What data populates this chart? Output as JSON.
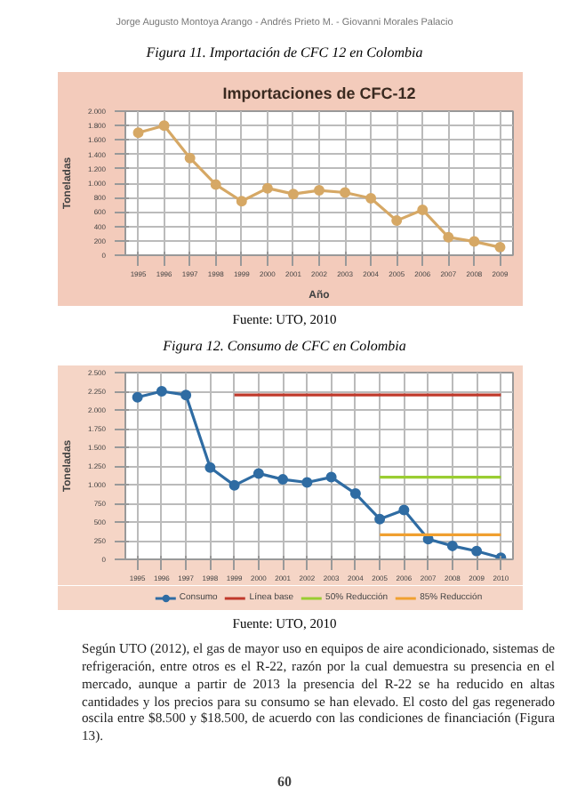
{
  "chart_data": [
    {
      "type": "other",
      "annotations": [
        "Jorge Augusto Montoya Arango - Andrés Prieto M. - Giovanni Morales Palacio"
      ]
    },
    {
      "type": "line",
      "title": "Figura 11. Importación de CFC 12 en Colombia",
      "subtitle": "Importaciones de CFC-12",
      "xlabel": "Año",
      "ylabel": "Toneladas",
      "x": [
        1995,
        1996,
        1997,
        1998,
        1999,
        2000,
        2001,
        2002,
        2003,
        2004,
        2005,
        2006,
        2007,
        2008,
        2009
      ],
      "series": [
        {
          "color": "#d6a865",
          "values": [
            1700,
            1800,
            1350,
            980,
            750,
            930,
            850,
            900,
            870,
            790,
            480,
            630,
            250,
            190,
            110
          ]
        }
      ],
      "xlim": [
        1994.5,
        2009.5
      ],
      "xticks": [
        1995,
        1996,
        1997,
        1998,
        1999,
        2000,
        2001,
        2002,
        2003,
        2004,
        2005,
        2006,
        2007,
        2008,
        2009
      ],
      "ylim": [
        0,
        2000
      ],
      "yticks": [
        0,
        200,
        400,
        600,
        800,
        {
          "value": 1000,
          "label": "1.000"
        },
        {
          "value": 1200,
          "label": "1.200"
        },
        {
          "value": 1400,
          "label": "1.400"
        },
        {
          "value": 1600,
          "label": "1.600"
        },
        {
          "value": 1800,
          "label": "1.800"
        },
        {
          "value": 2000,
          "label": "2.000"
        }
      ],
      "grid": true,
      "marker": "circle",
      "legend": false,
      "annotations": [
        "Fuente: UTO, 2010"
      ]
    },
    {
      "type": "line",
      "title": "Figura 12. Consumo de CFC en Colombia",
      "ylabel": "Toneladas",
      "series": [
        {
          "name": "Consumo",
          "color": "#2f6ca3",
          "marker": "circle",
          "x": [
            1995,
            1996,
            1997,
            1998,
            1999,
            2000,
            2001,
            2002,
            2003,
            2004,
            2005,
            2006,
            2007,
            2008,
            2009,
            2010
          ],
          "values": [
            2170,
            2250,
            2200,
            1230,
            990,
            1150,
            1070,
            1030,
            1100,
            880,
            540,
            660,
            270,
            180,
            110,
            20
          ]
        },
        {
          "name": "Línea base",
          "color": "#c0392b",
          "marker": "none",
          "x": [
            1999,
            2010
          ],
          "values": [
            2200,
            2200
          ]
        },
        {
          "name": "50% Reducción",
          "color": "#9acd32",
          "marker": "none",
          "x": [
            2005,
            2010
          ],
          "values": [
            1100,
            1100
          ]
        },
        {
          "name": "85% Reducción",
          "color": "#f0a030",
          "marker": "none",
          "x": [
            2005,
            2010
          ],
          "values": [
            330,
            330
          ]
        }
      ],
      "xlim": [
        1994.5,
        2010.5
      ],
      "xticks": [
        1995,
        1996,
        1997,
        1998,
        1999,
        2000,
        2001,
        2002,
        2003,
        2004,
        2005,
        2006,
        2007,
        2008,
        2009,
        2010
      ],
      "ylim": [
        0,
        2500
      ],
      "yticks": [
        0,
        250,
        500,
        750,
        {
          "value": 1000,
          "label": "1.000"
        },
        {
          "value": 1250,
          "label": "1.250"
        },
        {
          "value": 1500,
          "label": "1.500"
        },
        {
          "value": 1750,
          "label": "1.750"
        },
        {
          "value": 2000,
          "label": "2.000"
        },
        {
          "value": 2250,
          "label": "2.250"
        },
        {
          "value": 2500,
          "label": "2.500"
        }
      ],
      "grid": true,
      "legend": "bottom",
      "annotations": [
        "Fuente: UTO, 2010",
        "Según UTO (2012), el gas de mayor uso en equipos de aire acondicionado, sistemas de refrigeración, entre otros es el R-22, razón por la cual demuestra su presencia en el mercado, aunque a partir de 2013 la presencia del R-22 se ha reducido en altas cantidades y los precios para su consumo se han elevado. El costo del gas regenerado oscila entre $8.500 y $18.500, de acuerdo con las condiciones de financiación (Figura 13).",
        "60"
      ]
    }
  ]
}
